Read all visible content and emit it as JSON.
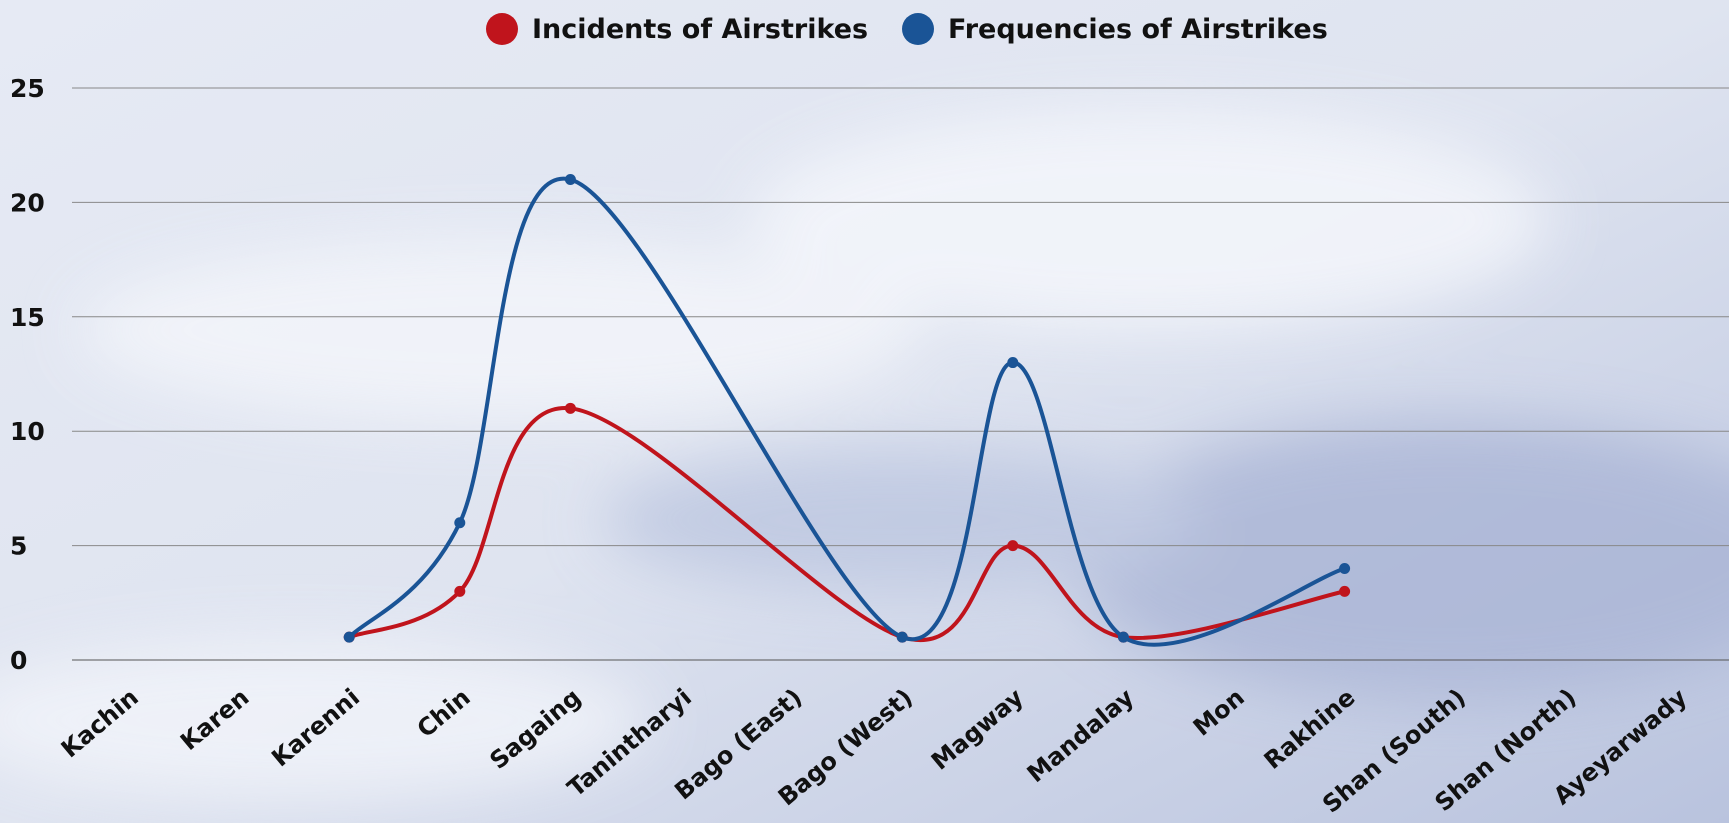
{
  "chart_data": {
    "type": "line",
    "categories": [
      "Kachin",
      "Karen",
      "Karenni",
      "Chin",
      "Sagaing",
      "Tanintharyi",
      "Bago (East)",
      "Bago (West)",
      "Magway",
      "Mandalay",
      "Mon",
      "Rakhine",
      "Shan (South)",
      "Shan (North)",
      "Ayeyarwady"
    ],
    "series": [
      {
        "name": "Incidents of Airstrikes",
        "color": "#c0141c",
        "values": [
          null,
          null,
          1,
          3,
          11,
          null,
          null,
          1,
          5,
          1,
          null,
          3,
          null,
          null,
          null
        ]
      },
      {
        "name": "Frequencies of Airstrikes",
        "color": "#1a5496",
        "values": [
          null,
          null,
          1,
          6,
          21,
          null,
          null,
          1,
          13,
          1,
          null,
          4,
          null,
          null,
          null
        ]
      }
    ],
    "ylim": [
      0,
      25
    ],
    "yticks": [
      0,
      5,
      10,
      15,
      20,
      25
    ],
    "grid": true,
    "smooth": true,
    "connect_gaps": true,
    "legend": "top"
  }
}
